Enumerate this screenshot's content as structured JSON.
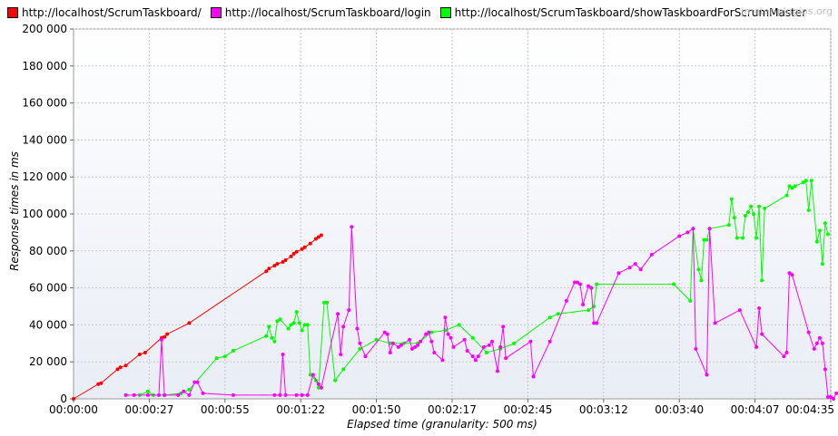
{
  "watermark": "jmeter-plugins.org",
  "chart_data": {
    "type": "line",
    "xlabel": "Elapsed time (granularity: 500 ms)",
    "ylabel": "Response times in ms",
    "xlim": [
      0,
      275
    ],
    "ylim": [
      0,
      200000
    ],
    "yticks": [
      {
        "v": 0,
        "label": "0"
      },
      {
        "v": 20000,
        "label": "20 000"
      },
      {
        "v": 40000,
        "label": "40 000"
      },
      {
        "v": 60000,
        "label": "60 000"
      },
      {
        "v": 80000,
        "label": "80 000"
      },
      {
        "v": 100000,
        "label": "100 000"
      },
      {
        "v": 120000,
        "label": "120 000"
      },
      {
        "v": 140000,
        "label": "140 000"
      },
      {
        "v": 160000,
        "label": "160 000"
      },
      {
        "v": 180000,
        "label": "180 000"
      },
      {
        "v": 200000,
        "label": "200 000"
      }
    ],
    "xticks": [
      {
        "v": 0,
        "label": "00:00:00"
      },
      {
        "v": 27.5,
        "label": "00:00:27"
      },
      {
        "v": 55,
        "label": "00:00:55"
      },
      {
        "v": 82.5,
        "label": "00:01:22"
      },
      {
        "v": 110,
        "label": "00:01:50"
      },
      {
        "v": 137.5,
        "label": "00:02:17"
      },
      {
        "v": 165,
        "label": "00:02:45"
      },
      {
        "v": 192.5,
        "label": "00:03:12"
      },
      {
        "v": 220,
        "label": "00:03:40"
      },
      {
        "v": 247.5,
        "label": "00:04:07"
      },
      {
        "v": 275,
        "label": "00:04:35"
      }
    ],
    "grid": true,
    "legend_position": "top-left",
    "series": [
      {
        "name": "http://localhost/ScrumTaskboard/",
        "color": "#ff0000",
        "points": [
          [
            0,
            0
          ],
          [
            9,
            8000
          ],
          [
            10,
            8500
          ],
          [
            16,
            16000
          ],
          [
            17,
            17000
          ],
          [
            19,
            18000
          ],
          [
            24,
            24000
          ],
          [
            26,
            25000
          ],
          [
            32,
            33000
          ],
          [
            33,
            33500
          ],
          [
            34,
            35000
          ],
          [
            42,
            41000
          ],
          [
            70,
            69000
          ],
          [
            71,
            70500
          ],
          [
            73,
            72000
          ],
          [
            74,
            73000
          ],
          [
            76,
            74000
          ],
          [
            77,
            75000
          ],
          [
            79,
            77000
          ],
          [
            80,
            78500
          ],
          [
            81,
            79500
          ],
          [
            83,
            81000
          ],
          [
            84,
            82000
          ],
          [
            86,
            84000
          ],
          [
            88,
            86500
          ],
          [
            89,
            87500
          ],
          [
            90,
            88500
          ]
        ]
      },
      {
        "name": "http://localhost/ScrumTaskboard/login",
        "color": "#ff00ff",
        "points": [
          [
            19,
            2000
          ],
          [
            22,
            2000
          ],
          [
            27,
            2000
          ],
          [
            31,
            2000
          ],
          [
            32,
            32000
          ],
          [
            33,
            2000
          ],
          [
            38,
            2000
          ],
          [
            40,
            4000
          ],
          [
            42,
            2000
          ],
          [
            44,
            9000
          ],
          [
            45,
            9000
          ],
          [
            47,
            3000
          ],
          [
            58,
            2000
          ],
          [
            73,
            2000
          ],
          [
            75,
            2000
          ],
          [
            76,
            24000
          ],
          [
            77,
            2000
          ],
          [
            81,
            2000
          ],
          [
            83,
            2000
          ],
          [
            85,
            2000
          ],
          [
            87,
            13000
          ],
          [
            89,
            8000
          ],
          [
            90,
            6000
          ],
          [
            96,
            46000
          ],
          [
            97,
            24000
          ],
          [
            98,
            39000
          ],
          [
            100,
            48000
          ],
          [
            101,
            93000
          ],
          [
            103,
            38000
          ],
          [
            104,
            30000
          ],
          [
            106,
            23000
          ],
          [
            113,
            36000
          ],
          [
            114,
            35000
          ],
          [
            115,
            25000
          ],
          [
            116,
            30000
          ],
          [
            118,
            28000
          ],
          [
            119,
            29000
          ],
          [
            122,
            32000
          ],
          [
            123,
            27000
          ],
          [
            124,
            28000
          ],
          [
            125,
            29000
          ],
          [
            126,
            31000
          ],
          [
            128,
            35000
          ],
          [
            129,
            36000
          ],
          [
            130,
            31000
          ],
          [
            131,
            25000
          ],
          [
            134,
            21000
          ],
          [
            135,
            44000
          ],
          [
            136,
            35000
          ],
          [
            137,
            33000
          ],
          [
            138,
            28000
          ],
          [
            142,
            32000
          ],
          [
            143,
            26000
          ],
          [
            145,
            23000
          ],
          [
            146,
            21000
          ],
          [
            147,
            23000
          ],
          [
            149,
            28000
          ],
          [
            151,
            29000
          ],
          [
            152,
            31000
          ],
          [
            154,
            15000
          ],
          [
            155,
            28000
          ],
          [
            156,
            39000
          ],
          [
            157,
            22000
          ],
          [
            166,
            31000
          ],
          [
            167,
            12000
          ],
          [
            173,
            31000
          ],
          [
            179,
            53000
          ],
          [
            182,
            63000
          ],
          [
            183,
            63000
          ],
          [
            184,
            62000
          ],
          [
            185,
            51000
          ],
          [
            187,
            61000
          ],
          [
            188,
            60000
          ],
          [
            189,
            41000
          ],
          [
            190,
            41000
          ],
          [
            198,
            68000
          ],
          [
            202,
            71000
          ],
          [
            204,
            73000
          ],
          [
            206,
            70000
          ],
          [
            210,
            78000
          ],
          [
            220,
            88000
          ],
          [
            223,
            90000
          ],
          [
            225,
            92000
          ],
          [
            226,
            27000
          ],
          [
            230,
            13000
          ],
          [
            231,
            92000
          ],
          [
            233,
            41000
          ],
          [
            242,
            48000
          ],
          [
            248,
            28000
          ],
          [
            249,
            49000
          ],
          [
            250,
            35000
          ],
          [
            258,
            23000
          ],
          [
            259,
            25000
          ],
          [
            260,
            68000
          ],
          [
            261,
            67000
          ],
          [
            267,
            36000
          ],
          [
            269,
            27000
          ],
          [
            270,
            30000
          ],
          [
            271,
            33000
          ],
          [
            272,
            30000
          ],
          [
            273,
            16000
          ],
          [
            274,
            1000
          ],
          [
            275,
            1000
          ],
          [
            276,
            0
          ],
          [
            277,
            3000
          ],
          [
            278,
            3000
          ]
        ]
      },
      {
        "name": "http://localhost/ScrumTaskboard/showTaskboardForScrumMaster",
        "color": "#00ff00",
        "points": [
          [
            24,
            2000
          ],
          [
            27,
            4000
          ],
          [
            29,
            2000
          ],
          [
            33,
            2000
          ],
          [
            39,
            3000
          ],
          [
            42,
            5000
          ],
          [
            52,
            22000
          ],
          [
            55,
            23000
          ],
          [
            58,
            26000
          ],
          [
            70,
            34000
          ],
          [
            71,
            39000
          ],
          [
            72,
            33000
          ],
          [
            73,
            31000
          ],
          [
            74,
            42000
          ],
          [
            75,
            43000
          ],
          [
            78,
            38000
          ],
          [
            79,
            40000
          ],
          [
            80,
            41000
          ],
          [
            81,
            47000
          ],
          [
            82,
            41000
          ],
          [
            83,
            37000
          ],
          [
            84,
            40000
          ],
          [
            85,
            40000
          ],
          [
            86,
            13000
          ],
          [
            88,
            10000
          ],
          [
            89,
            6000
          ],
          [
            91,
            52000
          ],
          [
            92,
            52000
          ],
          [
            95,
            10000
          ],
          [
            98,
            16000
          ],
          [
            104,
            27000
          ],
          [
            110,
            32000
          ],
          [
            115,
            30000
          ],
          [
            120,
            30000
          ],
          [
            125,
            30000
          ],
          [
            130,
            36000
          ],
          [
            135,
            37000
          ],
          [
            140,
            40000
          ],
          [
            145,
            33000
          ],
          [
            150,
            25000
          ],
          [
            155,
            27000
          ],
          [
            160,
            30000
          ],
          [
            173,
            44000
          ],
          [
            176,
            46000
          ],
          [
            187,
            48000
          ],
          [
            189,
            50000
          ],
          [
            190,
            62000
          ],
          [
            218,
            62000
          ],
          [
            224,
            53000
          ],
          [
            225,
            92000
          ],
          [
            227,
            70000
          ],
          [
            228,
            64000
          ],
          [
            229,
            86000
          ],
          [
            230,
            86000
          ],
          [
            231,
            92000
          ],
          [
            238,
            94000
          ],
          [
            239,
            108000
          ],
          [
            240,
            98000
          ],
          [
            241,
            87000
          ],
          [
            243,
            87000
          ],
          [
            244,
            99000
          ],
          [
            245,
            101000
          ],
          [
            246,
            104000
          ],
          [
            247,
            100000
          ],
          [
            248,
            87000
          ],
          [
            249,
            104000
          ],
          [
            250,
            64000
          ],
          [
            251,
            103000
          ],
          [
            259,
            110000
          ],
          [
            260,
            115000
          ],
          [
            261,
            114000
          ],
          [
            262,
            115000
          ],
          [
            265,
            117000
          ],
          [
            266,
            118000
          ],
          [
            267,
            102000
          ],
          [
            268,
            118000
          ],
          [
            270,
            85000
          ],
          [
            271,
            91000
          ],
          [
            272,
            73000
          ],
          [
            273,
            95000
          ],
          [
            274,
            89000
          ]
        ]
      }
    ]
  }
}
